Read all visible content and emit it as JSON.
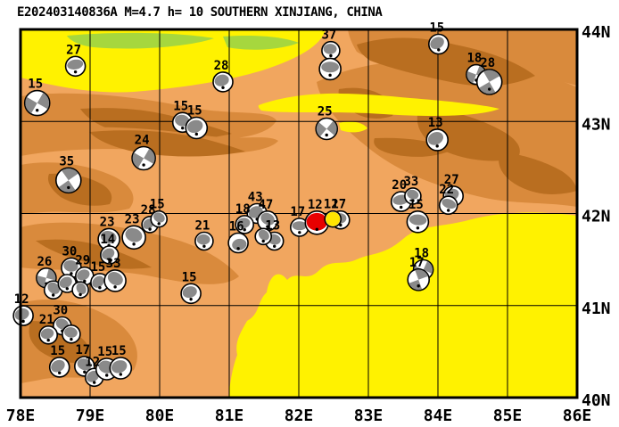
{
  "title": "E202403140836A M=4.7 h= 10 SOUTHERN XINJIANG, CHINA",
  "map": {
    "lon_min": 78,
    "lon_max": 86,
    "lat_min": 40,
    "lat_max": 44,
    "lon_ticks": [
      78,
      79,
      80,
      81,
      82,
      83,
      84,
      85,
      86
    ],
    "lat_ticks": [
      44,
      43,
      42,
      41,
      40
    ],
    "lon_labels": [
      "78E",
      "79E",
      "80E",
      "81E",
      "82E",
      "83E",
      "84E",
      "85E",
      "86E"
    ],
    "lat_labels": [
      "44N",
      "43N",
      "42N",
      "41N",
      "40N"
    ]
  },
  "colors": {
    "ball_grey": "#8a8a8a",
    "ball_white": "#ffffff",
    "ball_outline": "#000000",
    "main_event_red": "#e80000",
    "highlight_yellow": "#ffe400",
    "desert_yellow": "#fff200",
    "terrain_light": "#f1a65f",
    "terrain_medium": "#d98a3c",
    "terrain_dark": "#b96e20",
    "vegetation_green": "#a6d73e"
  },
  "events": [
    {
      "label": "27",
      "lon": 78.79,
      "lat": 43.6,
      "r": 11,
      "type": "b",
      "rot": -10
    },
    {
      "label": "15",
      "lon": 78.24,
      "lat": 43.2,
      "r": 14,
      "type": "q",
      "rot": 30
    },
    {
      "label": "28",
      "lon": 80.91,
      "lat": 43.43,
      "r": 11,
      "type": "t",
      "rot": -15
    },
    {
      "label": "15",
      "lon": 80.33,
      "lat": 42.99,
      "r": 11,
      "type": "t",
      "rot": 10
    },
    {
      "label": "15",
      "lon": 80.53,
      "lat": 42.93,
      "r": 12,
      "type": "t",
      "rot": -20
    },
    {
      "label": "37",
      "lon": 82.46,
      "lat": 43.77,
      "r": 10,
      "type": "t",
      "rot": 0
    },
    {
      "label": "",
      "lon": 82.45,
      "lat": 43.57,
      "r": 12,
      "type": "b",
      "rot": 0
    },
    {
      "label": "25",
      "lon": 82.4,
      "lat": 42.92,
      "r": 12,
      "type": "q",
      "rot": 40
    },
    {
      "label": "15",
      "lon": 84.01,
      "lat": 43.84,
      "r": 11,
      "type": "t",
      "rot": -30
    },
    {
      "label": "18",
      "lon": 84.55,
      "lat": 43.51,
      "r": 11,
      "type": "q",
      "rot": 20
    },
    {
      "label": "28",
      "lon": 84.74,
      "lat": 43.43,
      "r": 14,
      "type": "q",
      "rot": -30
    },
    {
      "label": "13",
      "lon": 83.99,
      "lat": 42.8,
      "r": 12,
      "type": "t",
      "rot": -25
    },
    {
      "label": "24",
      "lon": 79.77,
      "lat": 42.6,
      "r": 13,
      "type": "q",
      "rot": 30
    },
    {
      "label": "35",
      "lon": 78.69,
      "lat": 42.36,
      "r": 14,
      "type": "q",
      "rot": -35
    },
    {
      "label": "23",
      "lon": 79.27,
      "lat": 41.72,
      "r": 12,
      "type": "t",
      "rot": 15
    },
    {
      "label": "14",
      "lon": 79.28,
      "lat": 41.55,
      "r": 10,
      "type": "t",
      "rot": -30
    },
    {
      "label": "23",
      "lon": 79.63,
      "lat": 41.74,
      "r": 13,
      "type": "t",
      "rot": 20
    },
    {
      "label": "28",
      "lon": 79.86,
      "lat": 41.88,
      "r": 9,
      "type": "t",
      "rot": -40
    },
    {
      "label": "15",
      "lon": 79.99,
      "lat": 41.94,
      "r": 9,
      "type": "t",
      "rot": 30
    },
    {
      "label": "21",
      "lon": 80.64,
      "lat": 41.7,
      "r": 10,
      "type": "t",
      "rot": 0
    },
    {
      "label": "16",
      "lon": 81.13,
      "lat": 41.68,
      "r": 11,
      "type": "t",
      "rot": 170
    },
    {
      "label": "43",
      "lon": 81.4,
      "lat": 42.0,
      "r": 11,
      "type": "t",
      "rot": -20
    },
    {
      "label": "47",
      "lon": 81.55,
      "lat": 41.92,
      "r": 11,
      "type": "t",
      "rot": 30
    },
    {
      "label": "18",
      "lon": 81.22,
      "lat": 41.88,
      "r": 10,
      "type": "t",
      "rot": -10
    },
    {
      "label": "13",
      "lon": 81.65,
      "lat": 41.7,
      "r": 10,
      "type": "t",
      "rot": 15
    },
    {
      "label": "",
      "lon": 81.49,
      "lat": 41.75,
      "r": 9,
      "type": "t",
      "rot": 45
    },
    {
      "label": "17",
      "lon": 82.01,
      "lat": 41.85,
      "r": 10,
      "type": "b",
      "rot": 0
    },
    {
      "label": "17",
      "lon": 82.6,
      "lat": 41.93,
      "r": 10,
      "type": "t",
      "rot": 0
    },
    {
      "label": "12",
      "lon": 82.26,
      "lat": 41.9,
      "r": 13,
      "type": "red",
      "rot": 0
    },
    {
      "label": "12",
      "lon": 82.49,
      "lat": 41.94,
      "r": 9,
      "type": "yellow",
      "rot": 0
    },
    {
      "label": "20",
      "lon": 83.47,
      "lat": 42.13,
      "r": 11,
      "type": "b",
      "rot": -10
    },
    {
      "label": "33",
      "lon": 83.64,
      "lat": 42.19,
      "r": 9,
      "type": "t",
      "rot": 20
    },
    {
      "label": "15",
      "lon": 83.71,
      "lat": 41.91,
      "r": 12,
      "type": "b",
      "rot": 5
    },
    {
      "label": "27",
      "lon": 84.22,
      "lat": 42.19,
      "r": 11,
      "type": "t",
      "rot": -25
    },
    {
      "label": "22",
      "lon": 84.15,
      "lat": 42.09,
      "r": 10,
      "type": "b",
      "rot": 20
    },
    {
      "label": "18",
      "lon": 83.79,
      "lat": 41.39,
      "r": 11,
      "type": "q",
      "rot": 25
    },
    {
      "label": "17",
      "lon": 83.72,
      "lat": 41.28,
      "r": 12,
      "type": "q",
      "rot": -20
    },
    {
      "label": "15",
      "lon": 80.45,
      "lat": 41.13,
      "r": 11,
      "type": "t",
      "rot": -15
    },
    {
      "label": "30",
      "lon": 78.73,
      "lat": 41.41,
      "r": 11,
      "type": "t",
      "rot": 10
    },
    {
      "label": "29",
      "lon": 78.92,
      "lat": 41.32,
      "r": 10,
      "type": "t",
      "rot": -25
    },
    {
      "label": "26",
      "lon": 78.37,
      "lat": 41.3,
      "r": 11,
      "type": "q",
      "rot": 15
    },
    {
      "label": "",
      "lon": 78.47,
      "lat": 41.17,
      "r": 10,
      "type": "t",
      "rot": 40
    },
    {
      "label": "",
      "lon": 78.67,
      "lat": 41.24,
      "r": 10,
      "type": "t",
      "rot": -30
    },
    {
      "label": "",
      "lon": 78.86,
      "lat": 41.17,
      "r": 9,
      "type": "t",
      "rot": 60
    },
    {
      "label": "15",
      "lon": 79.14,
      "lat": 41.25,
      "r": 10,
      "type": "t",
      "rot": -45
    },
    {
      "label": "33",
      "lon": 79.36,
      "lat": 41.27,
      "r": 12,
      "type": "t",
      "rot": 30
    },
    {
      "label": "12",
      "lon": 78.04,
      "lat": 40.89,
      "r": 11,
      "type": "t",
      "rot": -20
    },
    {
      "label": "30",
      "lon": 78.6,
      "lat": 40.78,
      "r": 10,
      "type": "t",
      "rot": 25
    },
    {
      "label": "21",
      "lon": 78.4,
      "lat": 40.68,
      "r": 10,
      "type": "t",
      "rot": -15
    },
    {
      "label": "",
      "lon": 78.73,
      "lat": 40.69,
      "r": 10,
      "type": "t",
      "rot": 10
    },
    {
      "label": "15",
      "lon": 78.56,
      "lat": 40.33,
      "r": 11,
      "type": "t",
      "rot": -30
    },
    {
      "label": "17",
      "lon": 78.92,
      "lat": 40.34,
      "r": 11,
      "type": "t",
      "rot": 20
    },
    {
      "label": "12",
      "lon": 79.06,
      "lat": 40.22,
      "r": 10,
      "type": "t",
      "rot": -35
    },
    {
      "label": "15",
      "lon": 79.24,
      "lat": 40.31,
      "r": 12,
      "type": "t",
      "rot": 15
    },
    {
      "label": "15",
      "lon": 79.44,
      "lat": 40.32,
      "r": 12,
      "type": "t",
      "rot": -20
    }
  ]
}
